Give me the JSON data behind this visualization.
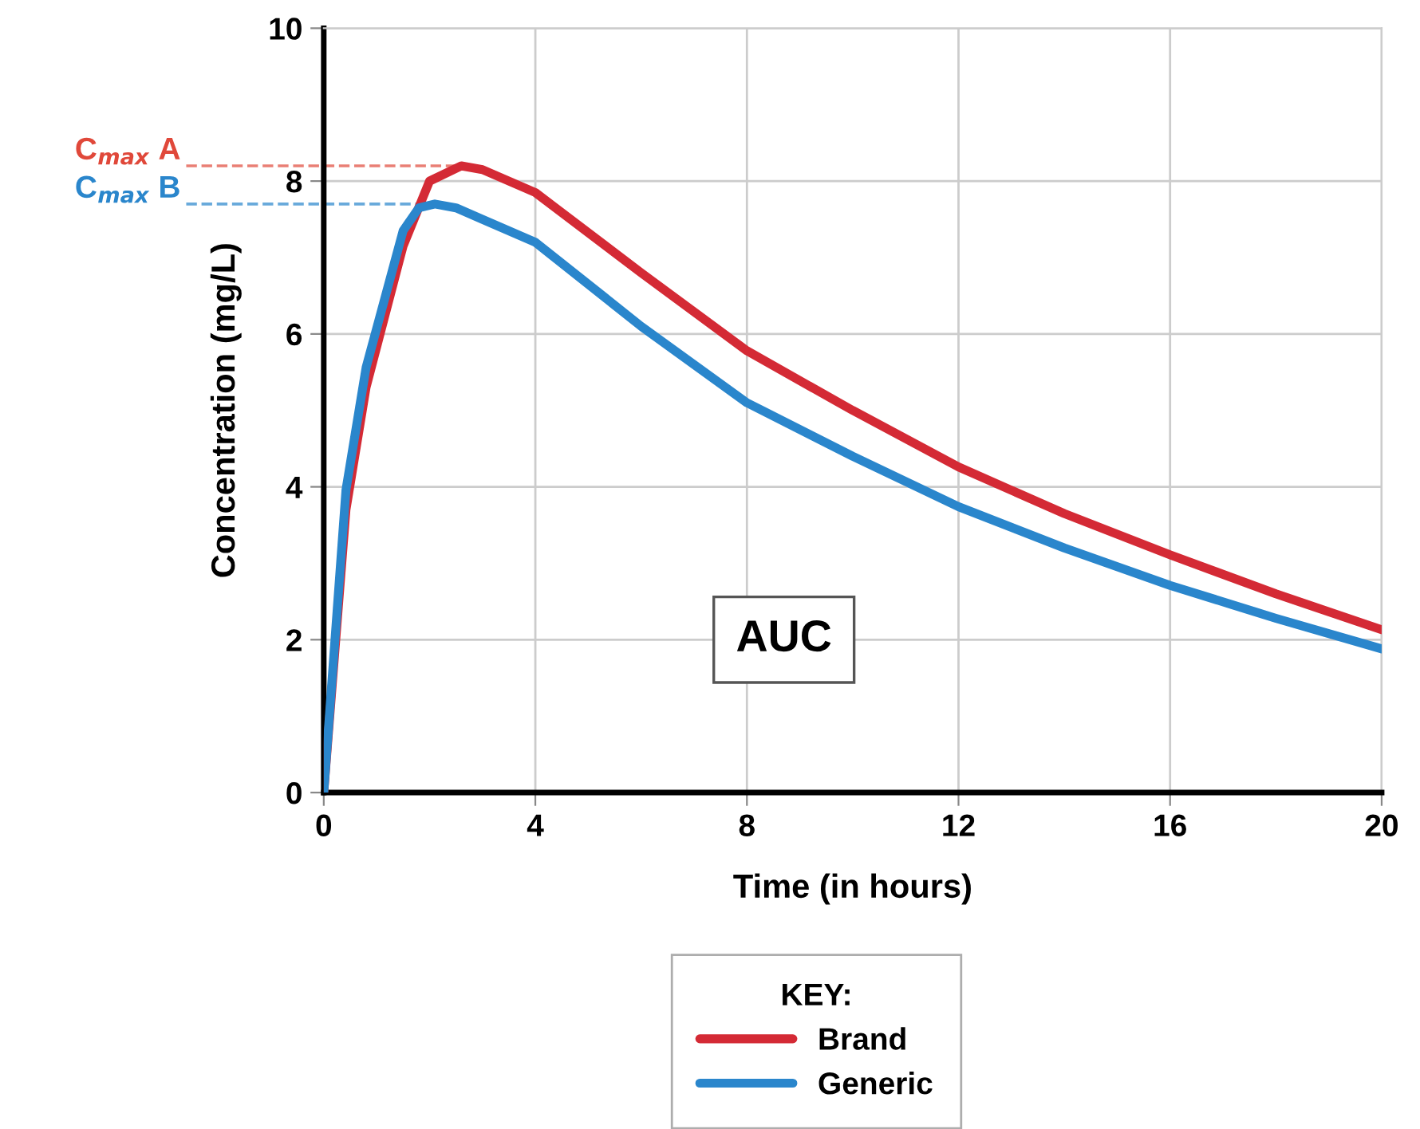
{
  "chart_data": {
    "type": "line",
    "xlabel": "Time (in hours)",
    "ylabel": "Concentration (mg/L)",
    "legend_title": "KEY:",
    "x": [
      0,
      0.42,
      0.8,
      1.5,
      2.0,
      2.6,
      3.0,
      4,
      6,
      8,
      10,
      12,
      14,
      16,
      18,
      20
    ],
    "series": [
      {
        "name": "Brand",
        "color": "#d42a35",
        "values": [
          0,
          3.7,
          5.3,
          7.15,
          8.0,
          8.2,
          8.15,
          7.85,
          6.8,
          5.78,
          5.0,
          4.26,
          3.65,
          3.11,
          2.6,
          2.13
        ]
      },
      {
        "name": "Generic",
        "color": "#2a86cc",
        "x": [
          0,
          0.42,
          0.8,
          1.5,
          1.8,
          2.1,
          2.5,
          3.0,
          4,
          6,
          8,
          10,
          12,
          14,
          16,
          18,
          20
        ],
        "values": [
          0,
          3.96,
          5.56,
          7.35,
          7.65,
          7.7,
          7.65,
          7.5,
          7.2,
          6.1,
          5.1,
          4.4,
          3.74,
          3.2,
          2.71,
          2.28,
          1.88
        ]
      }
    ],
    "xlim": [
      0,
      20
    ],
    "xticks": [
      0,
      4,
      8,
      12,
      16,
      20
    ],
    "ylim": [
      0,
      10
    ],
    "yticks": [
      0,
      2,
      4,
      6,
      8,
      10
    ],
    "ref_lines": [
      {
        "axis": "y",
        "value": 8.2,
        "label": "C$_{max}$ A",
        "color": "#e0483a",
        "line_style": "dashed"
      },
      {
        "axis": "y",
        "value": 7.7,
        "label": "C$_{max}$ B",
        "color": "#2a86cc",
        "line_style": "dashed"
      }
    ],
    "annotations": [
      "AUC"
    ],
    "grid": true,
    "legend": "bottom",
    "marker": "none",
    "line_style": "solid"
  }
}
